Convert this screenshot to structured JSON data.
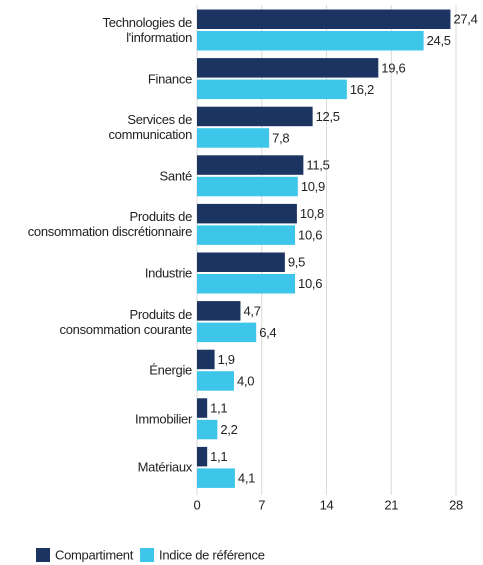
{
  "chart_data": {
    "type": "barh",
    "categories": [
      "Technologies de\nl'information",
      "Finance",
      "Services de\ncommunication",
      "Santé",
      "Produits de\nconsommation discrétionnaire",
      "Industrie",
      "Produits de\nconsommation courante",
      "Énergie",
      "Immobilier",
      "Matériaux"
    ],
    "series": [
      {
        "name": "Compartiment",
        "color": "#1b3461",
        "values": [
          27.4,
          19.6,
          12.5,
          11.5,
          10.8,
          9.5,
          4.7,
          1.9,
          1.1,
          1.1
        ],
        "value_labels": [
          "27,4",
          "19,6",
          "12,5",
          "11,5",
          "10,8",
          "9,5",
          "4,7",
          "1,9",
          "1,1",
          "1,1"
        ]
      },
      {
        "name": "Indice de référence",
        "color": "#3ec6ea",
        "values": [
          24.5,
          16.2,
          7.8,
          10.9,
          10.6,
          10.6,
          6.4,
          4.0,
          2.2,
          4.1
        ],
        "value_labels": [
          "24,5",
          "16,2",
          "7,8",
          "10,9",
          "10,6",
          "10,6",
          "6,4",
          "4,0",
          "2,2",
          "4,1"
        ]
      }
    ],
    "xlim": [
      0,
      28
    ],
    "xticks": [
      0,
      7,
      14,
      21,
      28
    ],
    "grid": true,
    "legend": "bottom-left"
  }
}
